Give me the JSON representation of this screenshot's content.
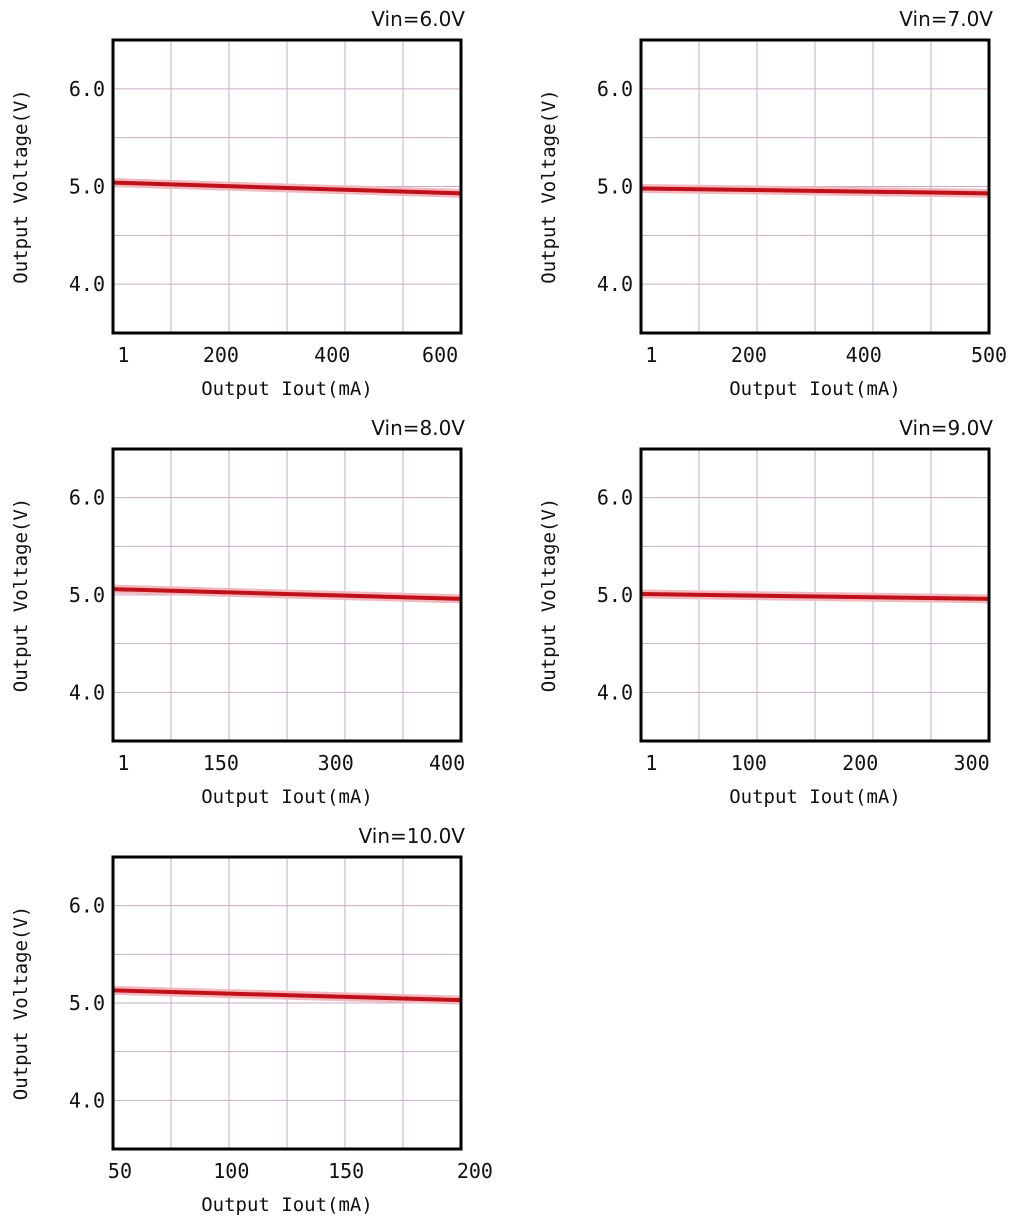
{
  "colors": {
    "grid": "#c7aec7",
    "frame": "#000000",
    "line": "#c0101a",
    "halo": "#f2b8bd"
  },
  "chart_data": [
    {
      "type": "line",
      "title": "Vin=6.0V",
      "xlabel": "Output Iout(mA)",
      "ylabel": "Output Voltage(V)",
      "xlim": [
        1,
        600
      ],
      "ylim": [
        3.5,
        6.5
      ],
      "xtick_labels": [
        "1",
        "200",
        "400",
        "600"
      ],
      "ytick_labels": [
        "6.0",
        "5.0",
        "4.0"
      ],
      "grid": true,
      "series": [
        {
          "x": [
            1,
            600
          ],
          "y": [
            5.04,
            4.93
          ]
        }
      ]
    },
    {
      "type": "line",
      "title": "Vin=7.0V",
      "xlabel": "Output Iout(mA)",
      "ylabel": "Output Voltage(V)",
      "xlim": [
        1,
        500
      ],
      "ylim": [
        3.5,
        6.5
      ],
      "xtick_labels": [
        "1",
        "200",
        "400",
        "500"
      ],
      "ytick_labels": [
        "6.0",
        "5.0",
        "4.0"
      ],
      "grid": true,
      "series": [
        {
          "x": [
            1,
            500
          ],
          "y": [
            4.98,
            4.93
          ]
        }
      ]
    },
    {
      "type": "line",
      "title": "Vin=8.0V",
      "xlabel": "Output Iout(mA)",
      "ylabel": "Output Voltage(V)",
      "xlim": [
        1,
        400
      ],
      "ylim": [
        3.5,
        6.5
      ],
      "xtick_labels": [
        "1",
        "150",
        "300",
        "400"
      ],
      "ytick_labels": [
        "6.0",
        "5.0",
        "4.0"
      ],
      "grid": true,
      "series": [
        {
          "x": [
            1,
            400
          ],
          "y": [
            5.06,
            4.96
          ]
        }
      ]
    },
    {
      "type": "line",
      "title": "Vin=9.0V",
      "xlabel": "Output Iout(mA)",
      "ylabel": "Output Voltage(V)",
      "xlim": [
        1,
        300
      ],
      "ylim": [
        3.5,
        6.5
      ],
      "xtick_labels": [
        "1",
        "100",
        "200",
        "300"
      ],
      "ytick_labels": [
        "6.0",
        "5.0",
        "4.0"
      ],
      "grid": true,
      "series": [
        {
          "x": [
            1,
            300
          ],
          "y": [
            5.01,
            4.96
          ]
        }
      ]
    },
    {
      "type": "line",
      "title": "Vin=10.0V",
      "xlabel": "Output Iout(mA)",
      "ylabel": "Output Voltage(V)",
      "xlim": [
        50,
        200
      ],
      "ylim": [
        3.5,
        6.5
      ],
      "xtick_labels": [
        "50",
        "100",
        "150",
        "200"
      ],
      "ytick_labels": [
        "6.0",
        "5.0",
        "4.0"
      ],
      "grid": true,
      "series": [
        {
          "x": [
            50,
            200
          ],
          "y": [
            5.13,
            5.03
          ]
        }
      ]
    }
  ]
}
